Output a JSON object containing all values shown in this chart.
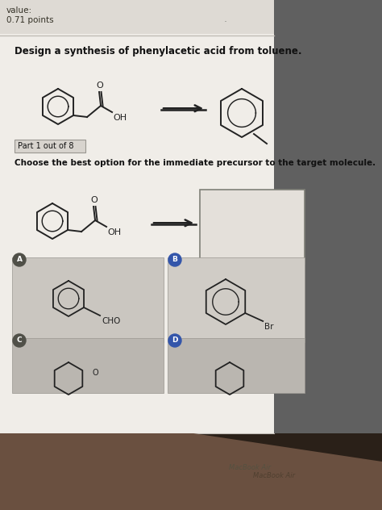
{
  "outer_bg": "#9a9088",
  "screen_bg": "#e8e5df",
  "header_bg": "#dedad4",
  "content_bg": "#f0ede8",
  "dark_right": "#5a5050",
  "bottom_dark": "#3a2a20",
  "bottom_wood": "#7a6050",
  "header_text": "value:\n0.71 points",
  "title": "Design a synthesis of phenylacetic acid from toluene.",
  "part_label": "Part 1 out of 8",
  "choose_text": "Choose the best option for the immediate precursor to the target molecule.",
  "option_A_label": "CHO",
  "option_B_label": "Br",
  "line_color": "#222222",
  "text_color": "#111111",
  "part_box_bg": "#d8d4ce",
  "opt_a_bg": "#cac6c0",
  "opt_b_bg": "#d0ccc6",
  "opt_cd_bg": "#bab6b0",
  "ans_box_bg": "#e4e0da",
  "figsize": [
    4.74,
    6.32
  ],
  "dpi": 100
}
